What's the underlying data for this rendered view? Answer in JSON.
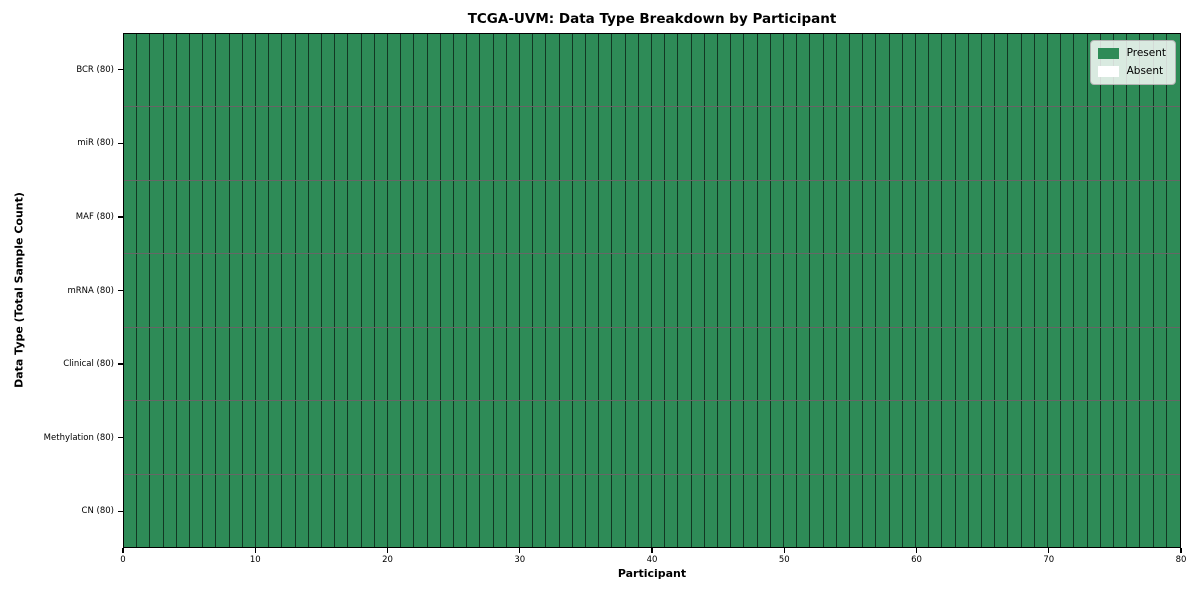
{
  "chart_data": {
    "type": "heatmap",
    "title": "TCGA-UVM: Data Type Breakdown by Participant",
    "xlabel": "Participant",
    "ylabel": "Data Type (Total Sample Count)",
    "x_range": [
      0,
      80
    ],
    "x_ticks": [
      0,
      10,
      20,
      30,
      40,
      50,
      60,
      70,
      80
    ],
    "n_participants": 80,
    "rows": [
      {
        "label": "BCR (80)",
        "present_count": 80
      },
      {
        "label": "miR (80)",
        "present_count": 80
      },
      {
        "label": "MAF (80)",
        "present_count": 80
      },
      {
        "label": "mRNA (80)",
        "present_count": 80
      },
      {
        "label": "Clinical (80)",
        "present_count": 80
      },
      {
        "label": "Methylation (80)",
        "present_count": 80
      },
      {
        "label": "CN (80)",
        "present_count": 80
      }
    ],
    "legend": [
      {
        "label": "Present",
        "color": "#2e8b57"
      },
      {
        "label": "Absent",
        "color": "#ffffff"
      }
    ],
    "colors": {
      "present": "#2e8b57",
      "absent": "#ffffff",
      "cell_edge": "rgba(0,0,0,0.6)",
      "axis_border": "#000000"
    },
    "grid": true,
    "legend_position": "upper right"
  }
}
